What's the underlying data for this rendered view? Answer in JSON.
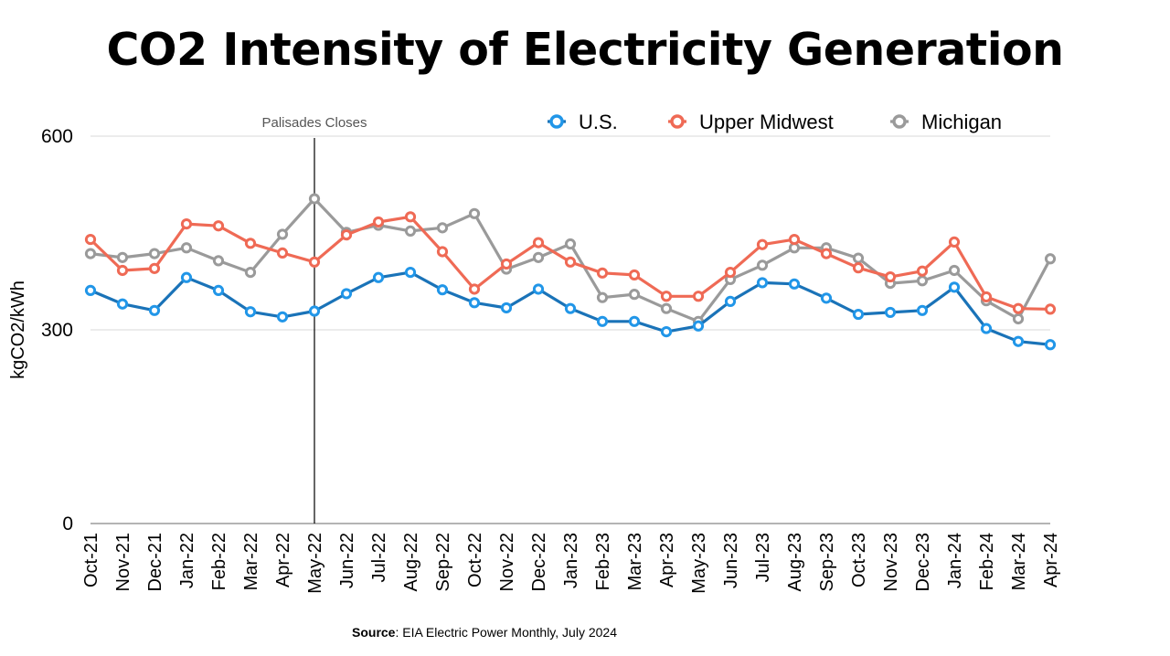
{
  "page": {
    "title": "CO2 Intensity of Electricity Generation",
    "source_label": "Source",
    "source_text": ": EIA Electric Power Monthly, July 2024"
  },
  "chart_data": {
    "type": "line",
    "title": "CO2 Intensity of Electricity Generation",
    "ylabel": "kgCO2/kWh",
    "xlabel": "",
    "ylim": [
      0,
      600
    ],
    "yticks": [
      0,
      300,
      600
    ],
    "grid": true,
    "legend_position": "top-right",
    "categories": [
      "Oct-21",
      "Nov-21",
      "Dec-21",
      "Jan-22",
      "Feb-22",
      "Mar-22",
      "Apr-22",
      "May-22",
      "Jun-22",
      "Jul-22",
      "Aug-22",
      "Sep-22",
      "Oct-22",
      "Nov-22",
      "Dec-22",
      "Jan-23",
      "Feb-23",
      "Mar-23",
      "Apr-23",
      "May-23",
      "Jun-23",
      "Jul-23",
      "Aug-23",
      "Sep-23",
      "Oct-23",
      "Nov-23",
      "Dec-23",
      "Jan-24",
      "Feb-24",
      "Mar-24",
      "Apr-24"
    ],
    "annotation": {
      "text": "Palisades Closes",
      "category": "May-22"
    },
    "series": [
      {
        "name": "U.S.",
        "color": "#1a73b8",
        "marker_color": "#2196e8",
        "values": [
          361,
          340,
          330,
          381,
          361,
          328,
          320,
          329,
          356,
          381,
          389,
          362,
          342,
          334,
          363,
          333,
          313,
          313,
          297,
          306,
          344,
          373,
          371,
          349,
          324,
          327,
          330,
          366,
          302,
          282,
          277
        ]
      },
      {
        "name": "Upper Midwest",
        "color": "#ef6a55",
        "marker_color": "#ef6a55",
        "values": [
          440,
          392,
          395,
          464,
          461,
          434,
          419,
          405,
          447,
          467,
          475,
          421,
          363,
          402,
          435,
          405,
          388,
          385,
          352,
          352,
          389,
          432,
          440,
          418,
          396,
          382,
          391,
          436,
          351,
          333,
          332
        ]
      },
      {
        "name": "Michigan",
        "color": "#9a9a9a",
        "marker_color": "#9a9a9a",
        "values": [
          418,
          412,
          418,
          427,
          407,
          389,
          448,
          503,
          451,
          462,
          453,
          458,
          480,
          394,
          412,
          433,
          350,
          355,
          333,
          313,
          378,
          400,
          427,
          427,
          411,
          372,
          376,
          392,
          345,
          317,
          410
        ]
      }
    ]
  }
}
